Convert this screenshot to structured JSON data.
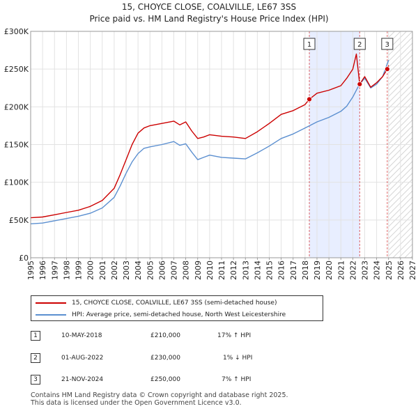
{
  "header": {
    "title": "15, CHOYCE CLOSE, COALVILLE, LE67 3SS",
    "subtitle": "Price paid vs. HM Land Registry's House Price Index (HPI)"
  },
  "chart_data": {
    "type": "line",
    "title": "15, CHOYCE CLOSE, COALVILLE, LE67 3SS",
    "subtitle": "Price paid vs. HM Land Registry's House Price Index (HPI)",
    "xlim": [
      1995,
      2027
    ],
    "ylim": [
      0,
      300000
    ],
    "x_ticks": [
      "1995",
      "1996",
      "1997",
      "1998",
      "1999",
      "2000",
      "2001",
      "2002",
      "2003",
      "2004",
      "2005",
      "2006",
      "2007",
      "2008",
      "2009",
      "2010",
      "2011",
      "2012",
      "2013",
      "2014",
      "2015",
      "2016",
      "2017",
      "2018",
      "2019",
      "2020",
      "2021",
      "2022",
      "2023",
      "2024",
      "2025",
      "2026",
      "2027"
    ],
    "y_ticks": [
      {
        "value": 0,
        "label": "£0"
      },
      {
        "value": 50000,
        "label": "£50K"
      },
      {
        "value": 100000,
        "label": "£100K"
      },
      {
        "value": 150000,
        "label": "£150K"
      },
      {
        "value": 200000,
        "label": "£200K"
      },
      {
        "value": 250000,
        "label": "£250K"
      },
      {
        "value": 300000,
        "label": "£300K"
      }
    ],
    "grid": true,
    "shaded_region": {
      "from": 2018.36,
      "to": 2022.58,
      "color": "#e8eeff"
    },
    "forecast_region": {
      "from": 2025.0,
      "to": 2027.0
    },
    "series": [
      {
        "name": "15, CHOYCE CLOSE, COALVILLE, LE67 3SS (semi-detached house)",
        "color": "#cc0000",
        "x": [
          1995.0,
          1996.0,
          1997.0,
          1998.0,
          1999.0,
          2000.0,
          2001.0,
          2002.0,
          2002.5,
          2003.0,
          2003.5,
          2004.0,
          2004.5,
          2005.0,
          2006.0,
          2007.0,
          2007.5,
          2008.0,
          2008.5,
          2009.0,
          2009.5,
          2010.0,
          2011.0,
          2012.0,
          2013.0,
          2014.0,
          2015.0,
          2016.0,
          2017.0,
          2018.0,
          2018.36,
          2019.0,
          2020.0,
          2021.0,
          2021.5,
          2022.0,
          2022.3,
          2022.58,
          2023.0,
          2023.5,
          2024.0,
          2024.5,
          2024.89,
          2025.0
        ],
        "y": [
          53000,
          54000,
          57000,
          60000,
          63000,
          68000,
          76000,
          92000,
          110000,
          130000,
          150000,
          165000,
          172000,
          175000,
          178000,
          181000,
          176000,
          180000,
          168000,
          158000,
          160000,
          163000,
          161000,
          160000,
          158000,
          167000,
          178000,
          190000,
          195000,
          203000,
          210000,
          218000,
          222000,
          228000,
          238000,
          250000,
          270000,
          230000,
          240000,
          226000,
          232000,
          240000,
          250000,
          255000
        ]
      },
      {
        "name": "HPI: Average price, semi-detached house, North West Leicestershire",
        "color": "#5b8fd0",
        "x": [
          1995.0,
          1996.0,
          1997.0,
          1998.0,
          1999.0,
          2000.0,
          2001.0,
          2002.0,
          2002.5,
          2003.0,
          2003.5,
          2004.0,
          2004.5,
          2005.0,
          2006.0,
          2007.0,
          2007.5,
          2008.0,
          2008.5,
          2009.0,
          2009.5,
          2010.0,
          2011.0,
          2012.0,
          2013.0,
          2014.0,
          2015.0,
          2016.0,
          2017.0,
          2018.0,
          2019.0,
          2020.0,
          2021.0,
          2021.5,
          2022.0,
          2022.5,
          2023.0,
          2023.5,
          2024.0,
          2024.5,
          2025.0
        ],
        "y": [
          45000,
          46000,
          49000,
          52000,
          55000,
          59000,
          66000,
          80000,
          95000,
          112000,
          127000,
          138000,
          145000,
          147000,
          150000,
          154000,
          149000,
          151000,
          140000,
          130000,
          133000,
          136000,
          133000,
          132000,
          131000,
          139000,
          148000,
          158000,
          164000,
          172000,
          180000,
          186000,
          194000,
          201000,
          213000,
          228000,
          238000,
          225000,
          230000,
          240000,
          262000
        ]
      }
    ],
    "markers": [
      {
        "id": "1",
        "x": 2018.36,
        "y": 210000
      },
      {
        "id": "2",
        "x": 2022.58,
        "y": 230000
      },
      {
        "id": "3",
        "x": 2024.89,
        "y": 250000
      }
    ]
  },
  "legend": {
    "items": [
      {
        "label": "15, CHOYCE CLOSE, COALVILLE, LE67 3SS (semi-detached house)",
        "color": "#cc0000"
      },
      {
        "label": "HPI: Average price, semi-detached house, North West Leicestershire",
        "color": "#5b8fd0"
      }
    ]
  },
  "transactions": [
    {
      "id": "1",
      "date": "10-MAY-2018",
      "price": "£210,000",
      "hpi": "17% ↑ HPI"
    },
    {
      "id": "2",
      "date": "01-AUG-2022",
      "price": "£230,000",
      "hpi": "1% ↓ HPI"
    },
    {
      "id": "3",
      "date": "21-NOV-2024",
      "price": "£250,000",
      "hpi": "7% ↑ HPI"
    }
  ],
  "footer": {
    "line1": "Contains HM Land Registry data © Crown copyright and database right 2025.",
    "line2": "This data is licensed under the Open Government Licence v3.0."
  }
}
